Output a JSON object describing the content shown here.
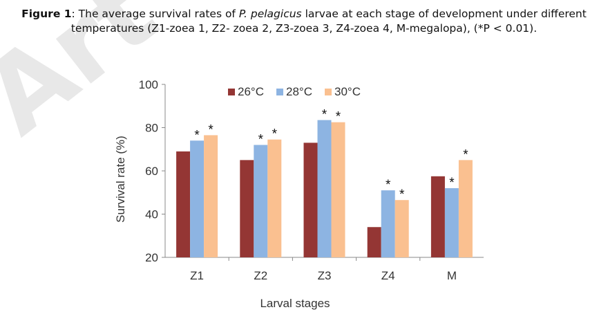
{
  "figure": {
    "label": "Figure 1",
    "sep": ": The average survival rates of ",
    "species": "P. pelagicus",
    "rest_line1": " larvae at each stage of development under different",
    "line2": "temperatures (Z1-zoea 1, Z2- zoea 2, Z3-zoea 3, Z4-zoea 4, M-megalopa), (*P < 0.01)."
  },
  "watermark_letters": "Art",
  "chart_data": {
    "type": "bar",
    "title": "",
    "xlabel": "Larval stages",
    "ylabel": "Survival rate (%)",
    "ylim": [
      20,
      100
    ],
    "yticks": [
      20,
      40,
      60,
      80,
      100
    ],
    "categories": [
      "Z1",
      "Z2",
      "Z3",
      "Z4",
      "M"
    ],
    "legend_position": "top",
    "grid": false,
    "series": [
      {
        "name": "26°C",
        "color": "#943634",
        "values": [
          69,
          65,
          73,
          34,
          57.5
        ],
        "significant": [
          false,
          false,
          false,
          false,
          false
        ]
      },
      {
        "name": "28°C",
        "color": "#8db4e2",
        "values": [
          74,
          72,
          83.5,
          51,
          52
        ],
        "significant": [
          true,
          true,
          true,
          true,
          true
        ]
      },
      {
        "name": "30°C",
        "color": "#fac090",
        "values": [
          76.5,
          74.5,
          82.5,
          46.5,
          65
        ],
        "significant": [
          true,
          true,
          true,
          true,
          true
        ]
      }
    ],
    "marker": "*"
  }
}
